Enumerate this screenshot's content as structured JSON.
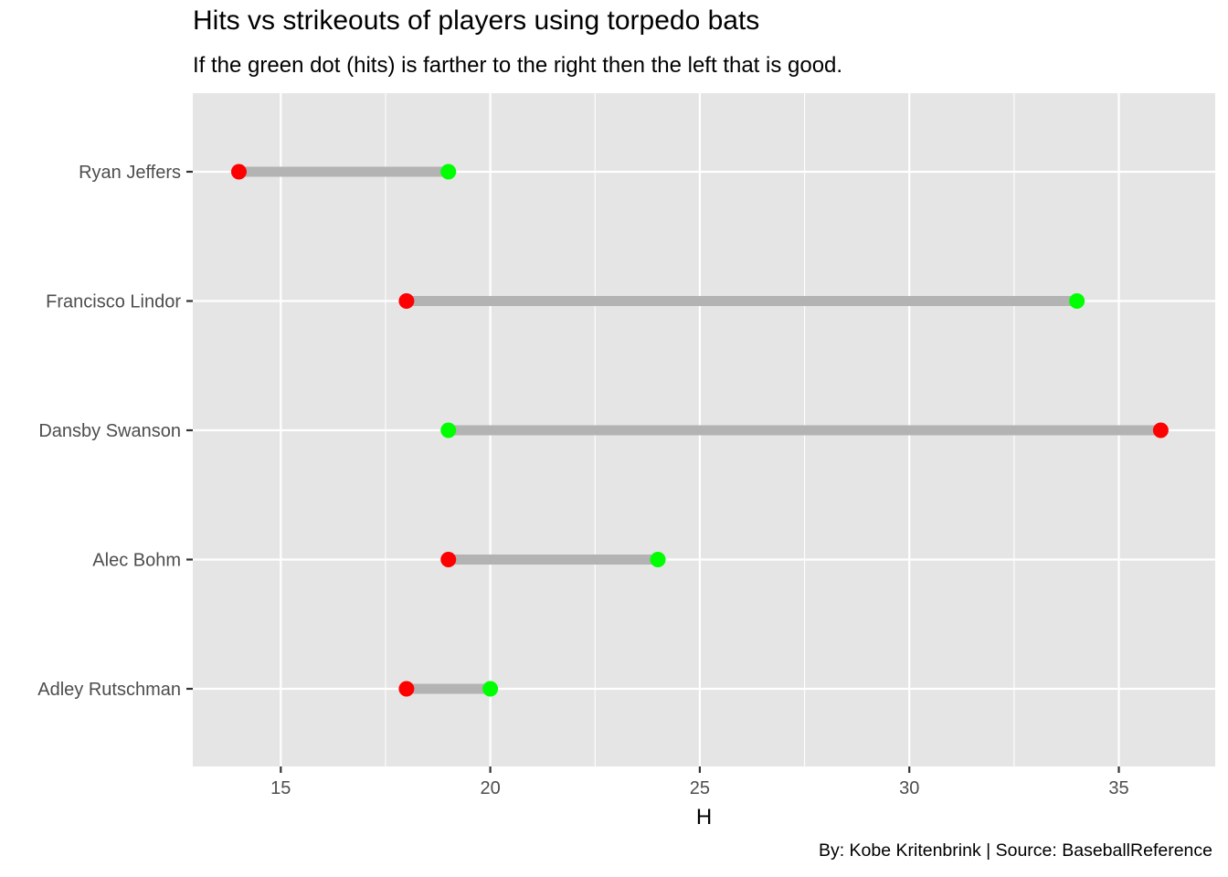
{
  "chart_data": {
    "type": "dumbbell",
    "title": "Hits vs strikeouts of players using torpedo bats",
    "subtitle": "If the green dot (hits) is farther to the right then the left that is good.",
    "caption": "By: Kobe Kritenbrink | Source: BaseballReference",
    "xlabel": "H",
    "ylabel": "",
    "xlim": [
      12.9,
      37.3
    ],
    "xticks": [
      15,
      20,
      25,
      30,
      35
    ],
    "categories": [
      "Ryan Jeffers",
      "Francisco Lindor",
      "Dansby Swanson",
      "Alec Bohm",
      "Adley Rutschman"
    ],
    "series": [
      {
        "values": [
          19,
          34,
          19,
          24,
          20
        ],
        "color": "#00ff00"
      },
      {
        "values": [
          14,
          18,
          36,
          19,
          18
        ],
        "color": "#ff0000"
      }
    ],
    "segment_color": "#b3b3b3",
    "panel_background": "#e5e5e5",
    "grid": true,
    "legend": "none"
  }
}
